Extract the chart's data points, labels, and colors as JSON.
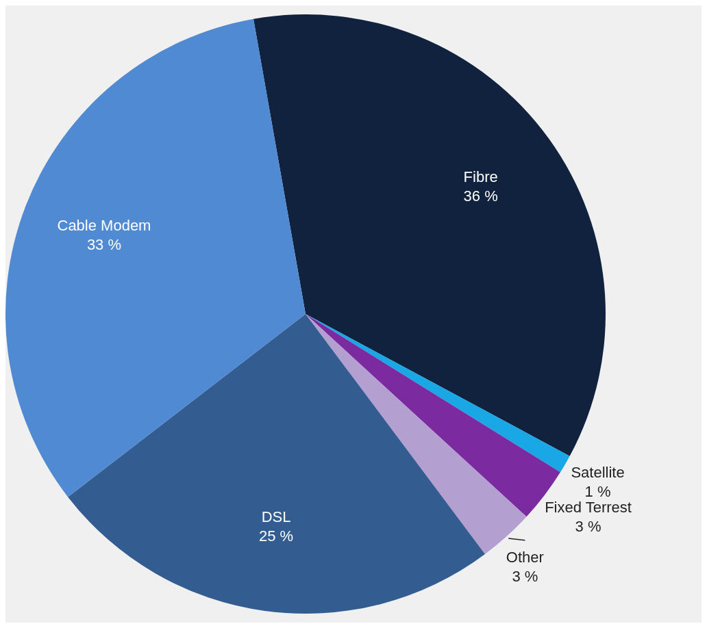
{
  "chart_data": {
    "type": "pie",
    "categories": [
      "Fibre",
      "Satellite",
      "Fixed Terrest",
      "Other",
      "DSL",
      "Cable Modem"
    ],
    "values": [
      36,
      1,
      3,
      3,
      25,
      33
    ],
    "colors": [
      "#10223e",
      "#1aa7e6",
      "#7b2aa0",
      "#b39fd0",
      "#335d91",
      "#4f8ad2"
    ],
    "value_labels": [
      "36 %",
      "1 %",
      "3 %",
      "3 %",
      "25 %",
      "33 %"
    ],
    "legend": false
  }
}
